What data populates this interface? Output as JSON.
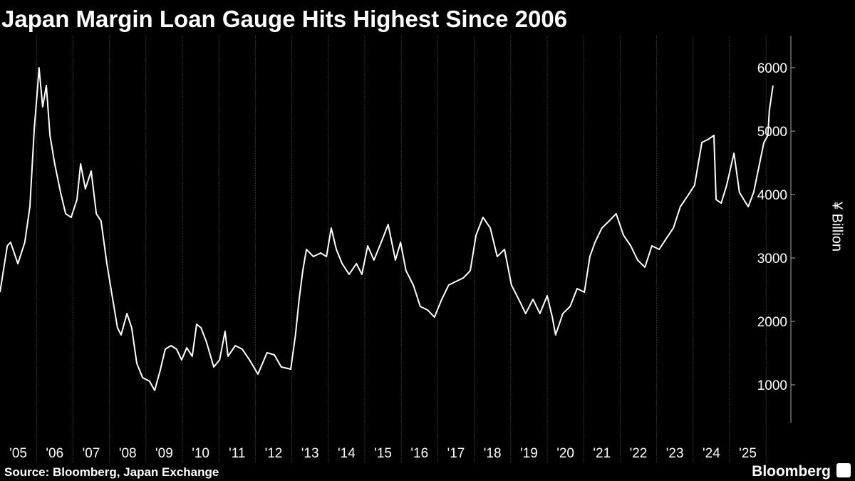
{
  "chart_data": {
    "type": "line",
    "title": "Japan Margin Loan Gauge Hits Highest Since 2006",
    "source": "Source: Bloomberg, Japan Exchange",
    "brand": "Bloomberg",
    "y_axis_label": "¥ Billion",
    "color": "#ffffff",
    "xlim": [
      2005,
      2026.68
    ],
    "ylim": [
      400,
      6500
    ],
    "yticks": [
      1000,
      2000,
      3000,
      4000,
      5000,
      6000
    ],
    "xticks": [
      {
        "value": 2005.5,
        "label": "'05"
      },
      {
        "value": 2006.5,
        "label": "'06"
      },
      {
        "value": 2007.5,
        "label": "'07"
      },
      {
        "value": 2008.5,
        "label": "'08"
      },
      {
        "value": 2009.5,
        "label": "'09"
      },
      {
        "value": 2010.5,
        "label": "'10"
      },
      {
        "value": 2011.5,
        "label": "'11"
      },
      {
        "value": 2012.5,
        "label": "'12"
      },
      {
        "value": 2013.5,
        "label": "'13"
      },
      {
        "value": 2014.5,
        "label": "'14"
      },
      {
        "value": 2015.5,
        "label": "'15"
      },
      {
        "value": 2016.5,
        "label": "'16"
      },
      {
        "value": 2017.5,
        "label": "'17"
      },
      {
        "value": 2018.5,
        "label": "'18"
      },
      {
        "value": 2019.5,
        "label": "'19"
      },
      {
        "value": 2020.5,
        "label": "'20"
      },
      {
        "value": 2021.5,
        "label": "'21"
      },
      {
        "value": 2022.5,
        "label": "'22"
      },
      {
        "value": 2023.5,
        "label": "'23"
      },
      {
        "value": 2024.5,
        "label": "'24"
      },
      {
        "value": 2025.5,
        "label": "'25"
      }
    ],
    "xgrid": [
      2006,
      2007,
      2008,
      2009,
      2010,
      2011,
      2012,
      2013,
      2014,
      2015,
      2016,
      2017,
      2018,
      2019,
      2020,
      2021,
      2022,
      2023,
      2024,
      2025,
      2026
    ],
    "x": [
      2005.0,
      2005.2,
      2005.29,
      2005.49,
      2005.68,
      2005.82,
      2005.94,
      2006.02,
      2006.07,
      2006.17,
      2006.27,
      2006.37,
      2006.5,
      2006.66,
      2006.8,
      2006.95,
      2007.11,
      2007.21,
      2007.34,
      2007.5,
      2007.64,
      2007.77,
      2007.93,
      2008.09,
      2008.22,
      2008.32,
      2008.48,
      2008.61,
      2008.75,
      2008.91,
      2009.1,
      2009.24,
      2009.39,
      2009.53,
      2009.69,
      2009.84,
      2009.98,
      2010.12,
      2010.27,
      2010.39,
      2010.51,
      2010.66,
      2010.86,
      2011.02,
      2011.17,
      2011.25,
      2011.45,
      2011.64,
      2011.84,
      2012.07,
      2012.32,
      2012.52,
      2012.71,
      2012.97,
      2013.1,
      2013.2,
      2013.3,
      2013.4,
      2013.59,
      2013.79,
      2013.95,
      2014.08,
      2014.22,
      2014.38,
      2014.57,
      2014.77,
      2014.92,
      2015.08,
      2015.25,
      2015.45,
      2015.64,
      2015.84,
      2015.98,
      2016.13,
      2016.33,
      2016.52,
      2016.72,
      2016.91,
      2017.11,
      2017.3,
      2017.5,
      2017.7,
      2017.89,
      2018.05,
      2018.24,
      2018.44,
      2018.63,
      2018.83,
      2019.02,
      2019.22,
      2019.41,
      2019.61,
      2019.8,
      2020.0,
      2020.14,
      2020.23,
      2020.43,
      2020.63,
      2020.82,
      2021.02,
      2021.17,
      2021.31,
      2021.5,
      2021.7,
      2021.89,
      2022.09,
      2022.29,
      2022.48,
      2022.68,
      2022.87,
      2023.07,
      2023.26,
      2023.46,
      2023.65,
      2023.85,
      2024.04,
      2024.24,
      2024.43,
      2024.57,
      2024.63,
      2024.77,
      2024.92,
      2025.12,
      2025.27,
      2025.51,
      2025.66,
      2025.82,
      2025.94,
      2026.05,
      2026.09,
      2026.19
    ],
    "values": [
      2461,
      3191,
      3247,
      2910,
      3247,
      3809,
      5045,
      5607,
      6000,
      5382,
      5719,
      4933,
      4483,
      4034,
      3697,
      3640,
      3921,
      4483,
      4090,
      4371,
      3697,
      3584,
      2910,
      2348,
      1899,
      1787,
      2124,
      1899,
      1337,
      1112,
      1056,
      910,
      1225,
      1562,
      1618,
      1562,
      1393,
      1584,
      1449,
      1955,
      1899,
      1674,
      1281,
      1393,
      1843,
      1449,
      1618,
      1562,
      1393,
      1168,
      1506,
      1472,
      1281,
      1247,
      1787,
      2348,
      2798,
      3135,
      3022,
      3079,
      3022,
      3472,
      3135,
      2910,
      2742,
      2910,
      2742,
      3191,
      2966,
      3247,
      3528,
      2966,
      3247,
      2798,
      2573,
      2236,
      2180,
      2067,
      2348,
      2573,
      2629,
      2685,
      2798,
      3360,
      3640,
      3472,
      3022,
      3135,
      2573,
      2348,
      2124,
      2348,
      2124,
      2404,
      2067,
      1787,
      2124,
      2236,
      2517,
      2461,
      3022,
      3247,
      3472,
      3584,
      3697,
      3360,
      3191,
      2966,
      2854,
      3191,
      3135,
      3303,
      3472,
      3809,
      3978,
      4146,
      4820,
      4876,
      4933,
      3921,
      3865,
      4146,
      4652,
      4034,
      3809,
      4034,
      4483,
      4820,
      4933,
      5326,
      5719
    ]
  }
}
